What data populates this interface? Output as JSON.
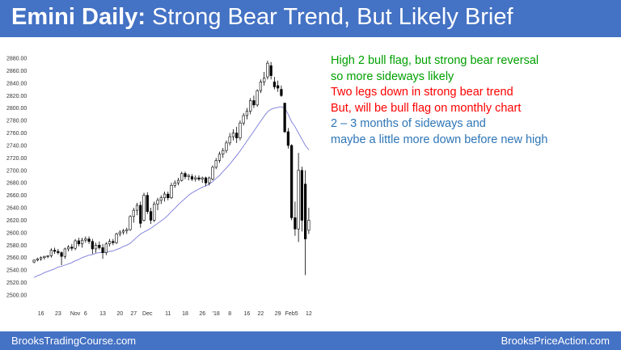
{
  "header": {
    "title_lead": "Emini Daily:",
    "title_rest": " Strong Bear Trend, But Likely Brief",
    "background": "#4472c4"
  },
  "notes": [
    {
      "text": "High 2 bull flag, but strong bear reversal",
      "color": "#00a000"
    },
    {
      "text": "so more sideways likely",
      "color": "#00a000"
    },
    {
      "text": "Two legs down in strong bear trend",
      "color": "#ff0000"
    },
    {
      "text": "But, will be bull flag on monthly chart",
      "color": "#ff0000"
    },
    {
      "text": "2 – 3 months of sideways and",
      "color": "#2e75b6"
    },
    {
      "text": "maybe a little more down before new high",
      "color": "#2e75b6"
    }
  ],
  "footer": {
    "left": "BrooksTradingCourse.com",
    "right": "BrooksPriceAction.com"
  },
  "chart_data": {
    "type": "candlestick",
    "title": "",
    "ylim": [
      2500,
      2880
    ],
    "y_ticks": [
      "2880.00",
      "2860.00",
      "2840.00",
      "2820.00",
      "2800.00",
      "2780.00",
      "2760.00",
      "2740.00",
      "2720.00",
      "2700.00",
      "2680.00",
      "2660.00",
      "2640.00",
      "2620.00",
      "2600.00",
      "2580.00",
      "2560.00",
      "2540.00",
      "2520.00",
      "2500.00"
    ],
    "x_labels": [
      {
        "label": "16",
        "bar": 2
      },
      {
        "label": "23",
        "bar": 7
      },
      {
        "label": "Nov",
        "bar": 12
      },
      {
        "label": "6",
        "bar": 15
      },
      {
        "label": "13",
        "bar": 20
      },
      {
        "label": "20",
        "bar": 25
      },
      {
        "label": "27",
        "bar": 29
      },
      {
        "label": "Dec",
        "bar": 33
      },
      {
        "label": "11",
        "bar": 39
      },
      {
        "label": "18",
        "bar": 44
      },
      {
        "label": "26",
        "bar": 49
      },
      {
        "label": "'18",
        "bar": 53
      },
      {
        "label": "8",
        "bar": 57
      },
      {
        "label": "16",
        "bar": 62
      },
      {
        "label": "22",
        "bar": 66
      },
      {
        "label": "29",
        "bar": 71
      },
      {
        "label": "Feb5",
        "bar": 75
      },
      {
        "label": "12",
        "bar": 80
      }
    ],
    "ohlc": [
      [
        2553,
        2557,
        2551,
        2556
      ],
      [
        2556,
        2560,
        2554,
        2558
      ],
      [
        2558,
        2562,
        2555,
        2560
      ],
      [
        2560,
        2563,
        2557,
        2562
      ],
      [
        2562,
        2564,
        2559,
        2563
      ],
      [
        2563,
        2575,
        2560,
        2572
      ],
      [
        2572,
        2576,
        2566,
        2570
      ],
      [
        2570,
        2574,
        2565,
        2568
      ],
      [
        2568,
        2570,
        2548,
        2562
      ],
      [
        2562,
        2576,
        2558,
        2574
      ],
      [
        2574,
        2580,
        2570,
        2577
      ],
      [
        2577,
        2582,
        2571,
        2575
      ],
      [
        2575,
        2590,
        2572,
        2587
      ],
      [
        2587,
        2592,
        2578,
        2582
      ],
      [
        2582,
        2592,
        2576,
        2588
      ],
      [
        2588,
        2594,
        2584,
        2590
      ],
      [
        2590,
        2594,
        2582,
        2586
      ],
      [
        2586,
        2590,
        2566,
        2574
      ],
      [
        2574,
        2584,
        2568,
        2580
      ],
      [
        2580,
        2586,
        2573,
        2576
      ],
      [
        2576,
        2582,
        2558,
        2568
      ],
      [
        2568,
        2585,
        2564,
        2582
      ],
      [
        2582,
        2590,
        2578,
        2586
      ],
      [
        2586,
        2590,
        2580,
        2584
      ],
      [
        2584,
        2600,
        2582,
        2598
      ],
      [
        2598,
        2604,
        2594,
        2601
      ],
      [
        2601,
        2606,
        2597,
        2603
      ],
      [
        2603,
        2608,
        2598,
        2605
      ],
      [
        2605,
        2628,
        2603,
        2626
      ],
      [
        2626,
        2640,
        2616,
        2636
      ],
      [
        2636,
        2648,
        2628,
        2644
      ],
      [
        2644,
        2650,
        2608,
        2615
      ],
      [
        2620,
        2664,
        2618,
        2660
      ],
      [
        2660,
        2665,
        2630,
        2634
      ],
      [
        2634,
        2640,
        2614,
        2620
      ],
      [
        2620,
        2650,
        2617,
        2646
      ],
      [
        2646,
        2656,
        2636,
        2652
      ],
      [
        2652,
        2660,
        2646,
        2656
      ],
      [
        2656,
        2666,
        2650,
        2662
      ],
      [
        2662,
        2666,
        2652,
        2656
      ],
      [
        2656,
        2680,
        2654,
        2676
      ],
      [
        2676,
        2684,
        2672,
        2680
      ],
      [
        2680,
        2688,
        2676,
        2684
      ],
      [
        2684,
        2698,
        2682,
        2695
      ],
      [
        2695,
        2698,
        2686,
        2690
      ],
      [
        2690,
        2694,
        2684,
        2692
      ],
      [
        2690,
        2694,
        2683,
        2686
      ],
      [
        2686,
        2692,
        2682,
        2688
      ],
      [
        2688,
        2692,
        2683,
        2686
      ],
      [
        2686,
        2690,
        2680,
        2688
      ],
      [
        2688,
        2690,
        2675,
        2680
      ],
      [
        2680,
        2690,
        2676,
        2688
      ],
      [
        2686,
        2708,
        2684,
        2705
      ],
      [
        2705,
        2720,
        2702,
        2716
      ],
      [
        2716,
        2730,
        2712,
        2726
      ],
      [
        2726,
        2736,
        2720,
        2732
      ],
      [
        2732,
        2748,
        2728,
        2744
      ],
      [
        2744,
        2760,
        2740,
        2754
      ],
      [
        2754,
        2766,
        2748,
        2760
      ],
      [
        2760,
        2770,
        2744,
        2752
      ],
      [
        2752,
        2780,
        2748,
        2776
      ],
      [
        2776,
        2792,
        2772,
        2788
      ],
      [
        2788,
        2800,
        2782,
        2795
      ],
      [
        2795,
        2816,
        2790,
        2812
      ],
      [
        2812,
        2820,
        2800,
        2805
      ],
      [
        2805,
        2830,
        2802,
        2828
      ],
      [
        2828,
        2846,
        2824,
        2842
      ],
      [
        2842,
        2858,
        2836,
        2848
      ],
      [
        2850,
        2876,
        2846,
        2872
      ],
      [
        2868,
        2874,
        2846,
        2852
      ],
      [
        2842,
        2850,
        2830,
        2834
      ],
      [
        2836,
        2844,
        2826,
        2832
      ],
      [
        2830,
        2836,
        2818,
        2820
      ],
      [
        2808,
        2808,
        2760,
        2762
      ],
      [
        2762,
        2768,
        2735,
        2740
      ],
      [
        2740,
        2742,
        2620,
        2624
      ],
      [
        2624,
        2650,
        2595,
        2606
      ],
      [
        2606,
        2728,
        2585,
        2700
      ],
      [
        2700,
        2706,
        2602,
        2620
      ],
      [
        2678,
        2700,
        2532,
        2590
      ],
      [
        2604,
        2640,
        2598,
        2620
      ]
    ],
    "moving_average": {
      "name": "",
      "color": "#7b7bdb",
      "values": [
        2528,
        2531,
        2533,
        2536,
        2538,
        2540,
        2542,
        2545,
        2546,
        2548,
        2550,
        2552,
        2555,
        2557,
        2560,
        2562,
        2564,
        2565,
        2567,
        2568,
        2568,
        2569,
        2570,
        2571,
        2573,
        2575,
        2578,
        2580,
        2583,
        2588,
        2593,
        2598,
        2601,
        2604,
        2607,
        2611,
        2615,
        2619,
        2623,
        2628,
        2634,
        2639,
        2645,
        2650,
        2655,
        2660,
        2664,
        2667,
        2670,
        2673,
        2675,
        2678,
        2682,
        2687,
        2692,
        2698,
        2704,
        2710,
        2717,
        2724,
        2731,
        2739,
        2747,
        2755,
        2763,
        2771,
        2779,
        2787,
        2794,
        2798,
        2800,
        2801,
        2802,
        2800,
        2790,
        2778,
        2770,
        2760,
        2750,
        2740,
        2733
      ]
    }
  }
}
